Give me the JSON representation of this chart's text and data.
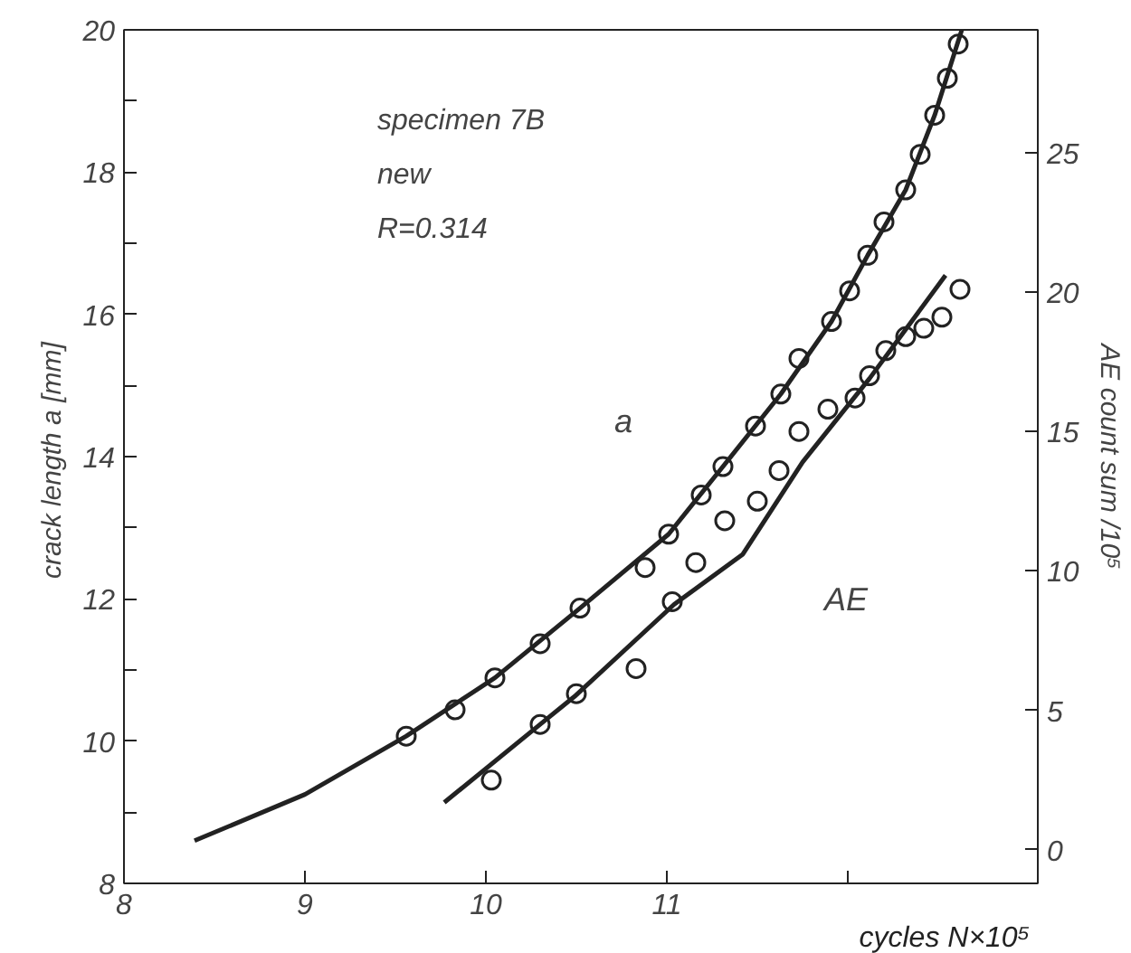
{
  "chart_data": {
    "type": "scatter",
    "xlabel": "cycles  N×10⁵",
    "ylabel": "crack length  a [mm]",
    "y2label": "AE count sum /10⁵",
    "annotations": [
      "specimen 7B",
      "new",
      "R=0.314"
    ],
    "marker": "circle",
    "grid": false,
    "xlim": [
      8,
      13.05
    ],
    "ylim": [
      8,
      20
    ],
    "y2lim": [
      -1.2,
      29.4
    ],
    "xticks": [
      8,
      9,
      10,
      11,
      {
        "value": 12,
        "label": null
      }
    ],
    "yticks": [
      8,
      {
        "value": 9,
        "label": null
      },
      10,
      {
        "value": 11,
        "label": null
      },
      12,
      {
        "value": 13,
        "label": null
      },
      14,
      {
        "value": 15,
        "label": null
      },
      16,
      {
        "value": 17,
        "label": null
      },
      18,
      {
        "value": 19,
        "label": null
      },
      20
    ],
    "y2ticks": [
      0,
      5,
      10,
      15,
      20,
      25
    ],
    "series": [
      {
        "color": "#222222",
        "x": [
          9.56,
          9.83,
          10.05,
          10.3,
          10.52,
          10.88,
          11.01,
          11.19,
          11.31,
          11.49,
          11.63,
          11.73,
          11.91,
          12.01,
          12.11,
          12.2,
          12.32,
          12.4,
          12.48,
          12.55,
          12.61
        ],
        "values": [
          10.07,
          10.44,
          10.89,
          11.37,
          11.87,
          12.44,
          12.91,
          13.46,
          13.86,
          14.43,
          14.88,
          15.38,
          15.9,
          16.33,
          16.83,
          17.3,
          17.75,
          18.25,
          18.8,
          19.32,
          19.8
        ]
      },
      {
        "type": "line",
        "marker": "none",
        "name": "a",
        "color": "#222222",
        "x": [
          8.39,
          9.0,
          9.56,
          10.05,
          10.52,
          11.01,
          11.31,
          11.63,
          11.91,
          12.11,
          12.32,
          12.48,
          12.63
        ],
        "values": [
          8.6,
          9.25,
          10.07,
          10.89,
          11.87,
          12.91,
          13.86,
          14.88,
          15.9,
          16.83,
          17.75,
          18.8,
          20.0
        ]
      },
      {
        "axis": "y2",
        "color": "#222222",
        "x": [
          10.03,
          10.3,
          10.5,
          10.83,
          11.03,
          11.16,
          11.32,
          11.5,
          11.62,
          11.73,
          11.89,
          12.04,
          12.12,
          12.21,
          12.32,
          12.42,
          12.52,
          12.62
        ],
        "values": [
          2.5,
          4.5,
          5.6,
          6.5,
          8.9,
          10.3,
          11.8,
          12.5,
          13.6,
          15.0,
          15.8,
          16.2,
          17.0,
          17.9,
          18.4,
          18.7,
          19.1,
          20.1
        ]
      },
      {
        "type": "line",
        "marker": "none",
        "name": "AE",
        "axis": "y2",
        "color": "#222222",
        "x": [
          9.77,
          10.3,
          10.49,
          11.04,
          11.42,
          11.75,
          12.12,
          12.54
        ],
        "values": [
          1.7,
          4.5,
          5.5,
          8.8,
          10.6,
          13.9,
          16.9,
          20.6
        ]
      }
    ]
  }
}
